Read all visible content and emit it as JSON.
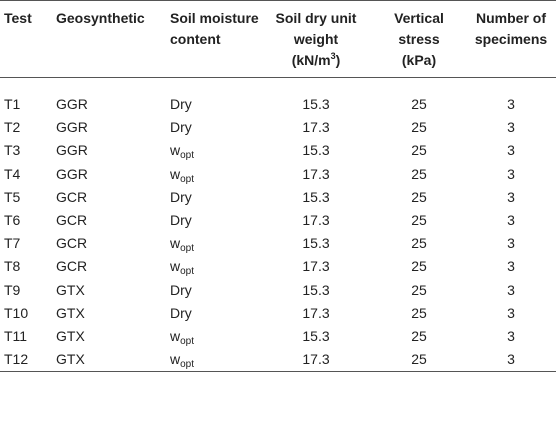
{
  "headers": {
    "test": "Test",
    "geosynthetic": "Geosynthetic",
    "moisture": "Soil moisture content",
    "unit_weight": "Soil dry unit weight",
    "unit_weight_units": "(kN/m",
    "unit_weight_units_sup": "3",
    "unit_weight_units_close": ")",
    "stress": "Vertical stress",
    "stress_units": "(kPa)",
    "specimens": "Number of specimens"
  },
  "rows": [
    {
      "test": "T1",
      "geo": "GGR",
      "moisture": "Dry",
      "moisture_sub": "",
      "weight": "15.3",
      "stress": "25",
      "specimens": "3"
    },
    {
      "test": "T2",
      "geo": "GGR",
      "moisture": "Dry",
      "moisture_sub": "",
      "weight": "17.3",
      "stress": "25",
      "specimens": "3"
    },
    {
      "test": "T3",
      "geo": "GGR",
      "moisture": "w",
      "moisture_sub": "opt",
      "weight": "15.3",
      "stress": "25",
      "specimens": "3"
    },
    {
      "test": "T4",
      "geo": "GGR",
      "moisture": "w",
      "moisture_sub": "opt",
      "weight": "17.3",
      "stress": "25",
      "specimens": "3"
    },
    {
      "test": "T5",
      "geo": "GCR",
      "moisture": "Dry",
      "moisture_sub": "",
      "weight": "15.3",
      "stress": "25",
      "specimens": "3"
    },
    {
      "test": "T6",
      "geo": "GCR",
      "moisture": "Dry",
      "moisture_sub": "",
      "weight": "17.3",
      "stress": "25",
      "specimens": "3"
    },
    {
      "test": "T7",
      "geo": "GCR",
      "moisture": "w",
      "moisture_sub": "opt",
      "weight": "15.3",
      "stress": "25",
      "specimens": "3"
    },
    {
      "test": "T8",
      "geo": "GCR",
      "moisture": "w",
      "moisture_sub": "opt",
      "weight": "17.3",
      "stress": "25",
      "specimens": "3"
    },
    {
      "test": "T9",
      "geo": "GTX",
      "moisture": "Dry",
      "moisture_sub": "",
      "weight": "15.3",
      "stress": "25",
      "specimens": "3"
    },
    {
      "test": "T10",
      "geo": "GTX",
      "moisture": "Dry",
      "moisture_sub": "",
      "weight": "17.3",
      "stress": "25",
      "specimens": "3"
    },
    {
      "test": "T11",
      "geo": "GTX",
      "moisture": "w",
      "moisture_sub": "opt",
      "weight": "15.3",
      "stress": "25",
      "specimens": "3"
    },
    {
      "test": "T12",
      "geo": "GTX",
      "moisture": "w",
      "moisture_sub": "opt",
      "weight": "17.3",
      "stress": "25",
      "specimens": "3"
    }
  ]
}
